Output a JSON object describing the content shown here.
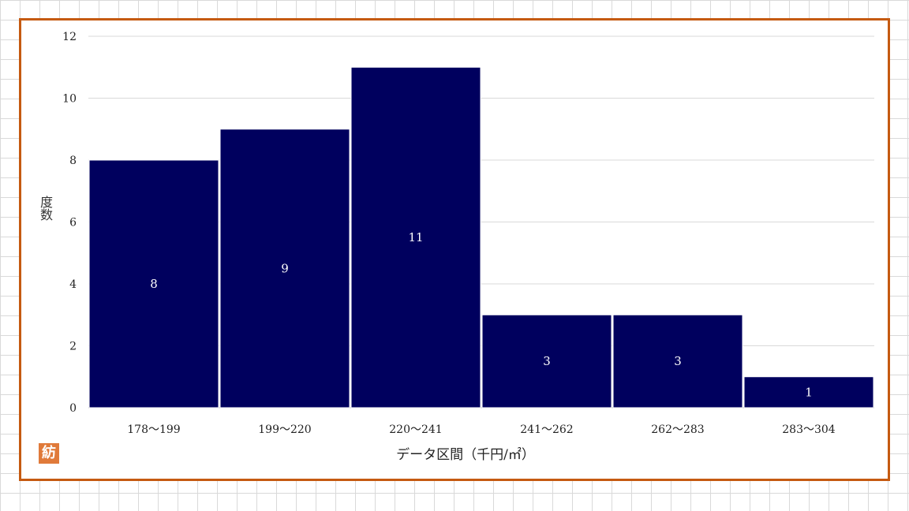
{
  "chart_data": {
    "type": "bar",
    "categories": [
      "178～199",
      "199～220",
      "220～241",
      "241～262",
      "262～283",
      "283～304"
    ],
    "values": [
      8,
      9,
      11,
      3,
      3,
      1
    ],
    "ylabel": "度数",
    "xlabel": "データ区間（千円/㎡）",
    "ylim": [
      0,
      12
    ],
    "yticks": [
      0,
      2,
      4,
      6,
      8,
      10,
      12
    ],
    "grid": true,
    "bar_color": "#00005e",
    "frame_color": "#c55a11"
  },
  "badge": {
    "label": "紡"
  }
}
